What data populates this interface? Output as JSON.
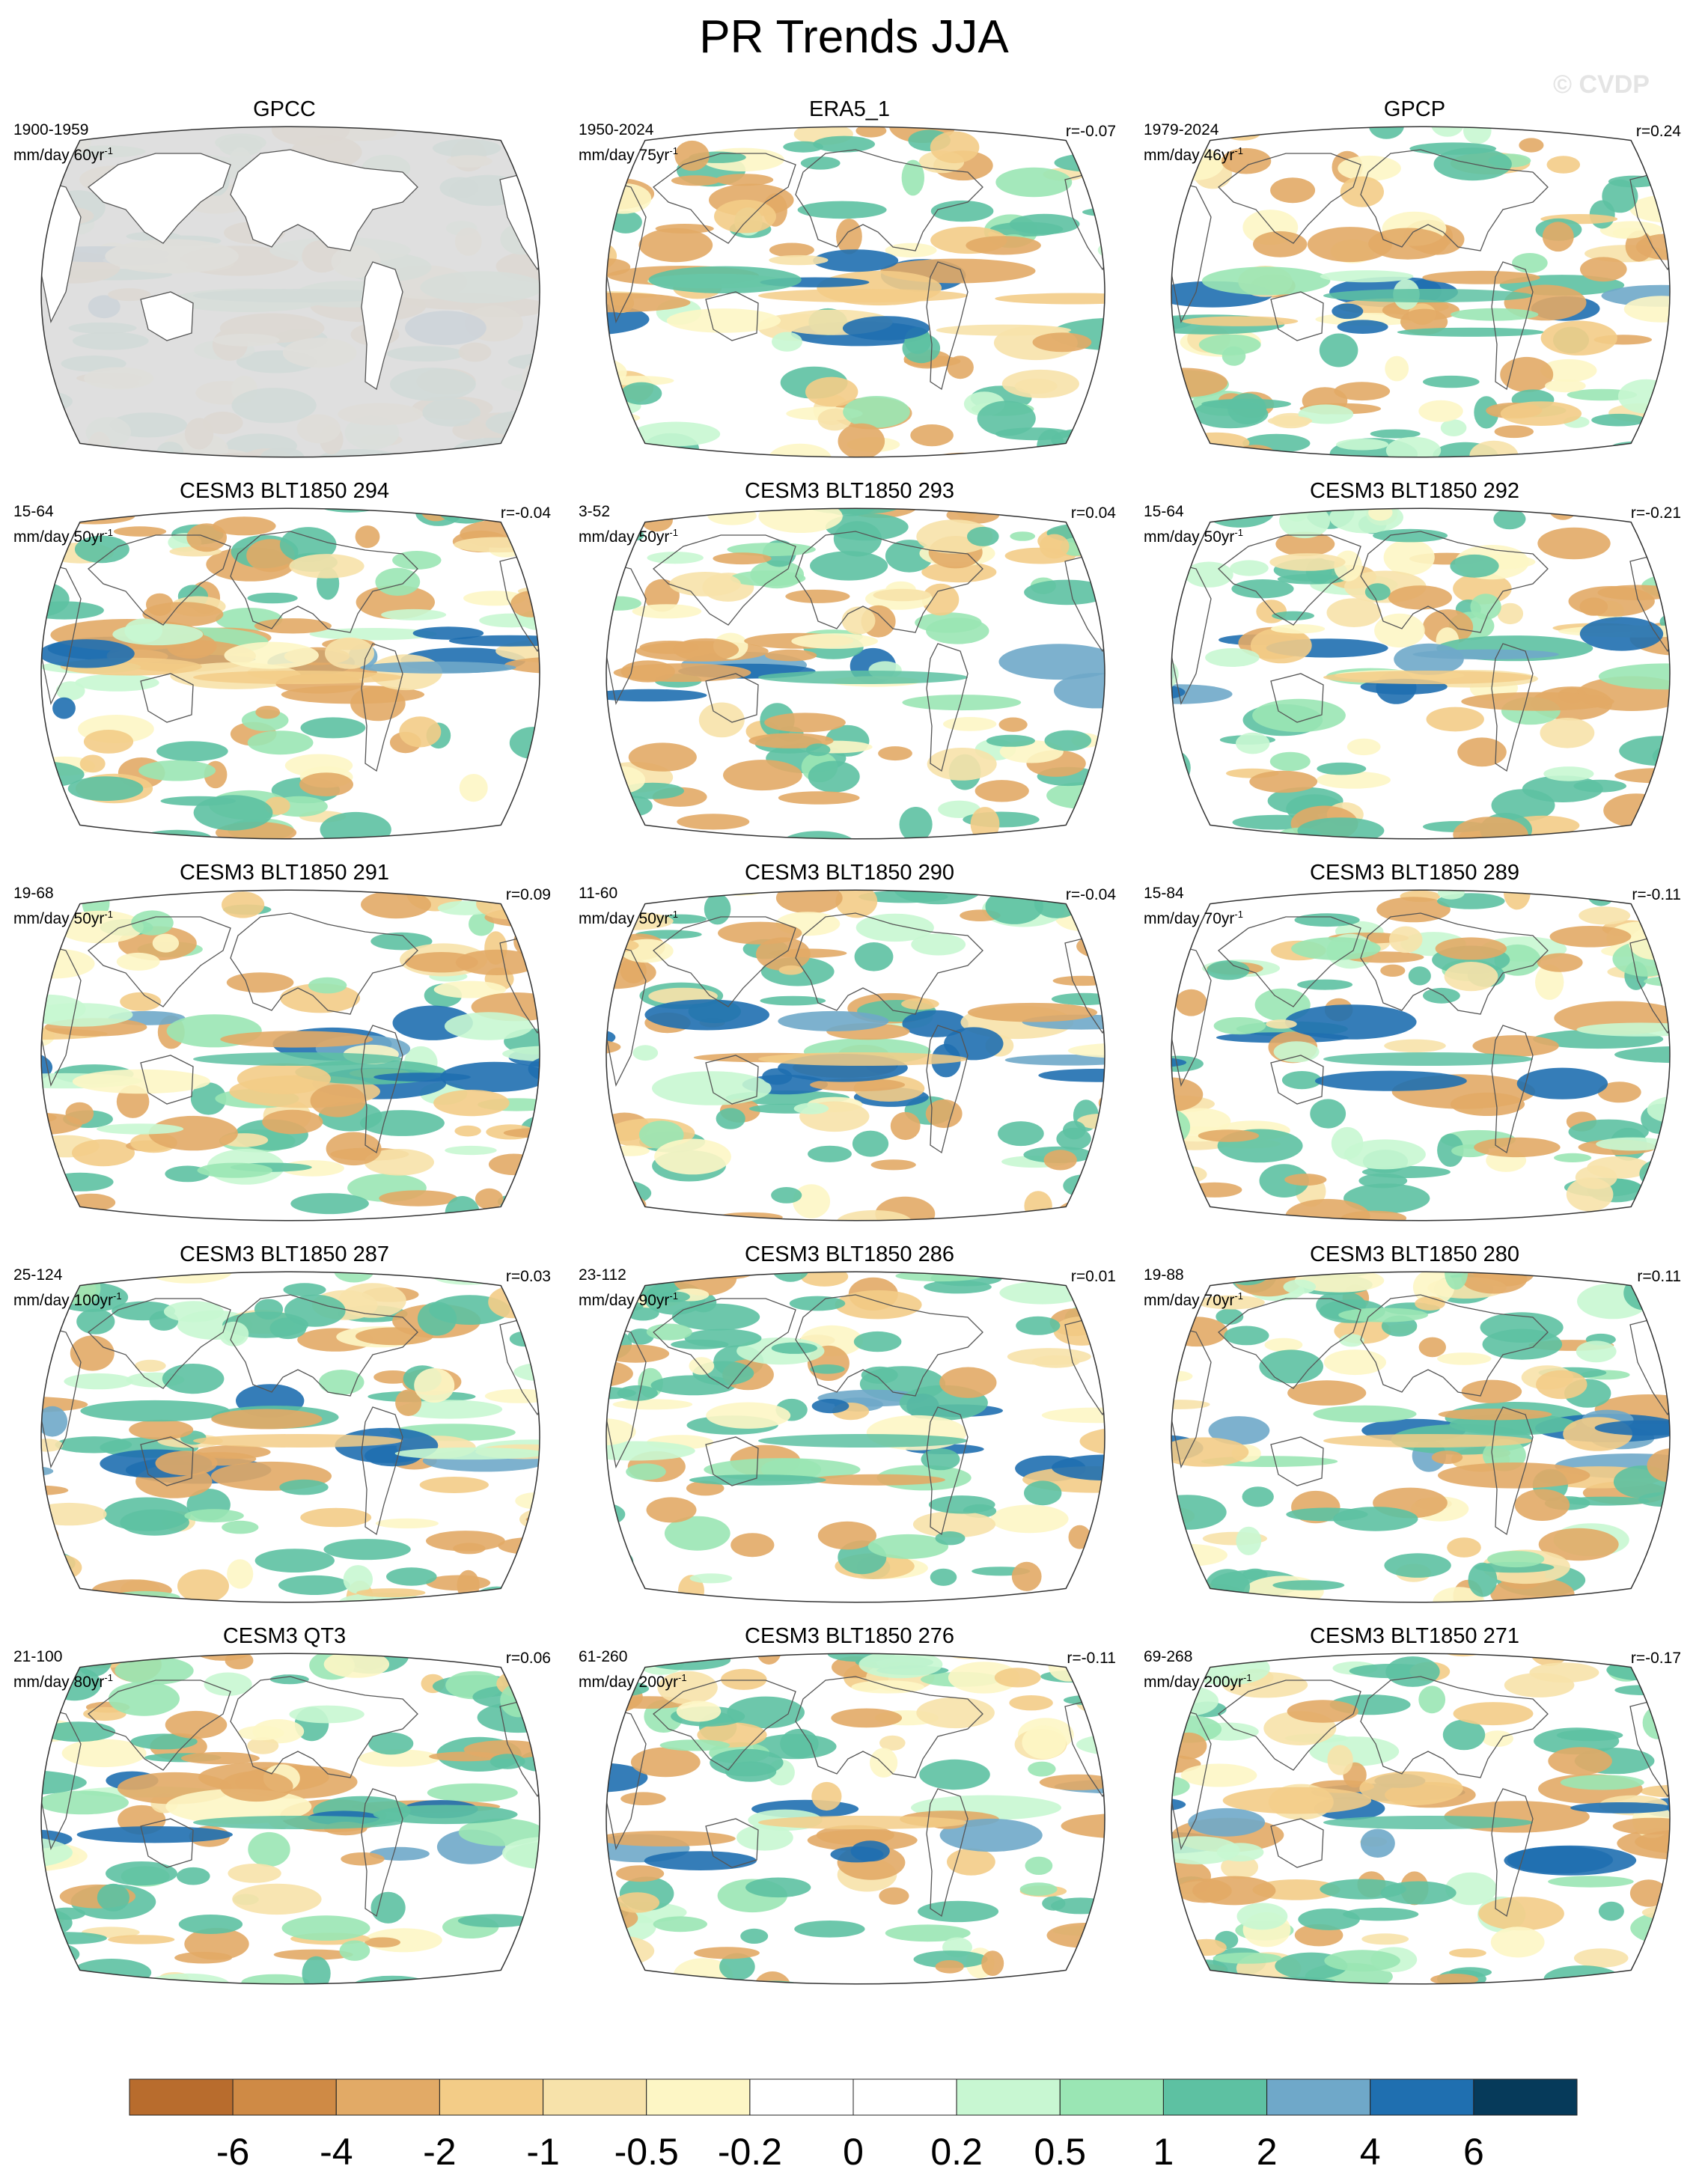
{
  "title": "PR Trends JJA",
  "watermark": "© CVDP",
  "chart_data": {
    "type": "heatmap",
    "title": "PR Trends JJA",
    "variable": "PR trend",
    "units": "mm/day",
    "projection": "Robinson, Pacific-centered",
    "colorbar": {
      "levels": [
        "-6",
        "-4",
        "-2",
        "-1",
        "-0.5",
        "-0.2",
        "0",
        "0.2",
        "0.5",
        "1",
        "2",
        "4",
        "6"
      ],
      "colors": [
        "#b86c2d",
        "#cf8a45",
        "#e2aa66",
        "#f3cc87",
        "#f7e2aa",
        "#fdf6c5",
        "#ffffff",
        "#ffffff",
        "#c8f7d2",
        "#9ae6b4",
        "#5dc1a2",
        "#6fa8c9",
        "#1f6fb0",
        "#063a5a"
      ]
    },
    "panels": [
      {
        "title": "GPCC",
        "years": "1900-1959",
        "units": "mm/day 60yr",
        "r": "",
        "dataset": "obs"
      },
      {
        "title": "ERA5_1",
        "years": "1950-2024",
        "units": "mm/day 75yr",
        "r": "r=-0.07",
        "dataset": "obs"
      },
      {
        "title": "GPCP",
        "years": "1979-2024",
        "units": "mm/day 46yr",
        "r": "r=0.24",
        "dataset": "obs"
      },
      {
        "title": "CESM3 BLT1850 294",
        "years": "15-64",
        "units": "mm/day 50yr",
        "r": "r=-0.04"
      },
      {
        "title": "CESM3 BLT1850 293",
        "years": "3-52",
        "units": "mm/day 50yr",
        "r": "r=0.04"
      },
      {
        "title": "CESM3 BLT1850 292",
        "years": "15-64",
        "units": "mm/day 50yr",
        "r": "r=-0.21"
      },
      {
        "title": "CESM3 BLT1850 291",
        "years": "19-68",
        "units": "mm/day 50yr",
        "r": "r=0.09"
      },
      {
        "title": "CESM3 BLT1850 290",
        "years": "11-60",
        "units": "mm/day 50yr",
        "r": "r=-0.04"
      },
      {
        "title": "CESM3 BLT1850 289",
        "years": "15-84",
        "units": "mm/day 70yr",
        "r": "r=-0.11"
      },
      {
        "title": "CESM3 BLT1850 287",
        "years": "25-124",
        "units": "mm/day 100yr",
        "r": "r=0.03"
      },
      {
        "title": "CESM3 BLT1850 286",
        "years": "23-112",
        "units": "mm/day 90yr",
        "r": "r=0.01"
      },
      {
        "title": "CESM3 BLT1850 280",
        "years": "19-88",
        "units": "mm/day 70yr",
        "r": "r=0.11"
      },
      {
        "title": "CESM3 QT3",
        "years": "21-100",
        "units": "mm/day 80yr",
        "r": "r=0.06"
      },
      {
        "title": "CESM3 BLT1850 276",
        "years": "61-260",
        "units": "mm/day 200yr",
        "r": "r=-0.11"
      },
      {
        "title": "CESM3 BLT1850 271",
        "years": "69-268",
        "units": "mm/day 200yr",
        "r": "r=-0.17"
      }
    ]
  }
}
